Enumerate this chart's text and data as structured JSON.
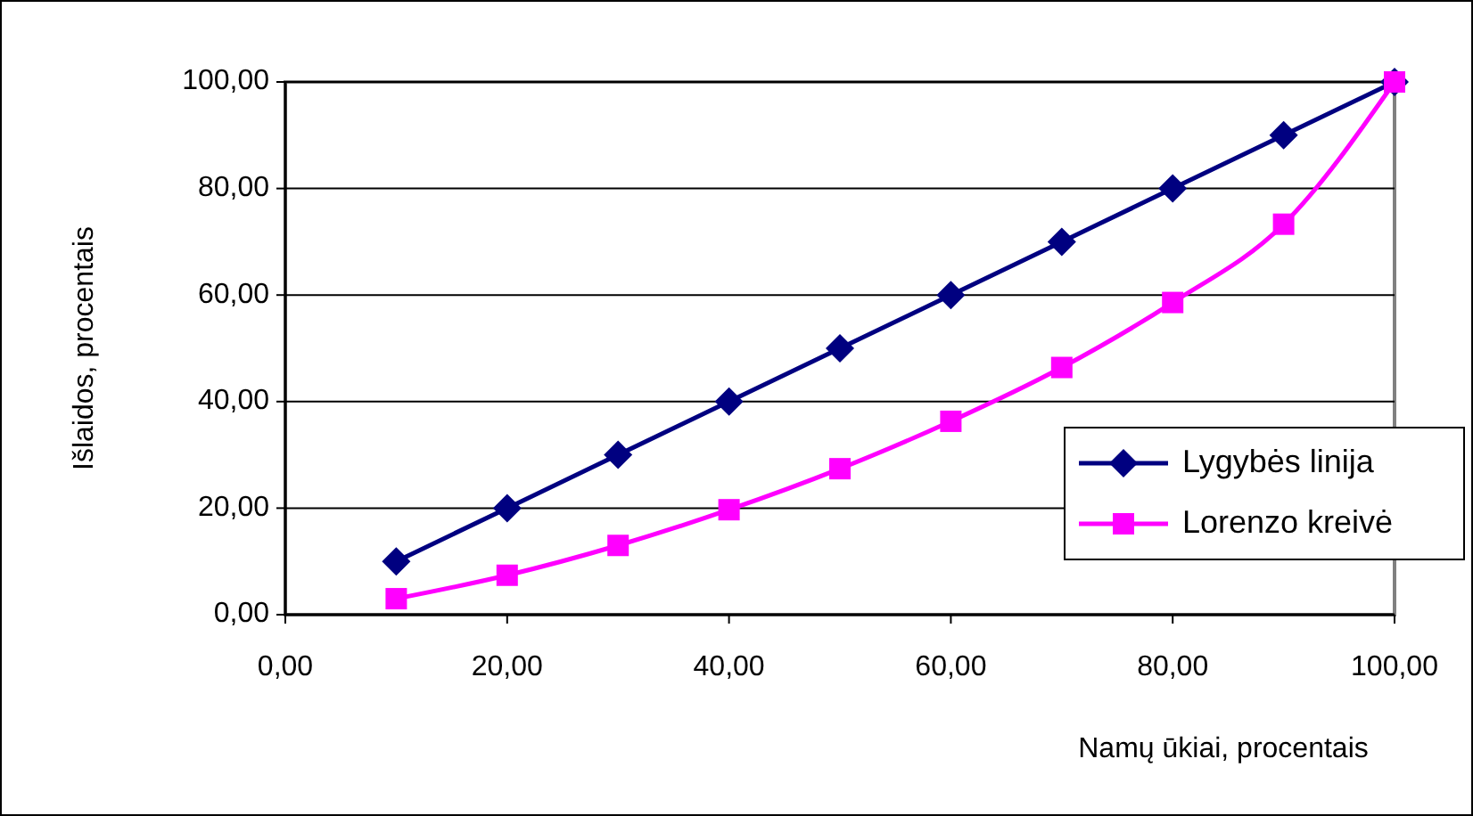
{
  "chart_data": {
    "type": "line",
    "xlabel": "Namų ūkiai, procentais",
    "ylabel": "Išlaidos, procentais",
    "x": [
      10,
      20,
      30,
      40,
      50,
      60,
      70,
      80,
      90,
      100
    ],
    "series": [
      {
        "name": "Lygybės linija",
        "color": "#000080",
        "marker": "diamond",
        "values": [
          10,
          20,
          30,
          40,
          50,
          60,
          70,
          80,
          90,
          100
        ]
      },
      {
        "name": "Lorenzo kreivė",
        "color": "#ff00ff",
        "marker": "square",
        "values": [
          3.0,
          7.4,
          13.0,
          19.7,
          27.4,
          36.3,
          46.4,
          58.6,
          73.3,
          100
        ]
      }
    ],
    "xlim": [
      0,
      100
    ],
    "xticks": [
      {
        "value": 0,
        "label": "0,00"
      },
      {
        "value": 20,
        "label": "20,00"
      },
      {
        "value": 40,
        "label": "40,00"
      },
      {
        "value": 60,
        "label": "60,00"
      },
      {
        "value": 80,
        "label": "80,00"
      },
      {
        "value": 100,
        "label": "100,00"
      }
    ],
    "ylim": [
      0,
      100
    ],
    "yticks": [
      {
        "value": 0,
        "label": "0,00"
      },
      {
        "value": 20,
        "label": "20,00"
      },
      {
        "value": 40,
        "label": "40,00"
      },
      {
        "value": 60,
        "label": "60,00"
      },
      {
        "value": 80,
        "label": "80,00"
      },
      {
        "value": 100,
        "label": "100,00"
      }
    ],
    "grid": "y",
    "legend": "right"
  }
}
